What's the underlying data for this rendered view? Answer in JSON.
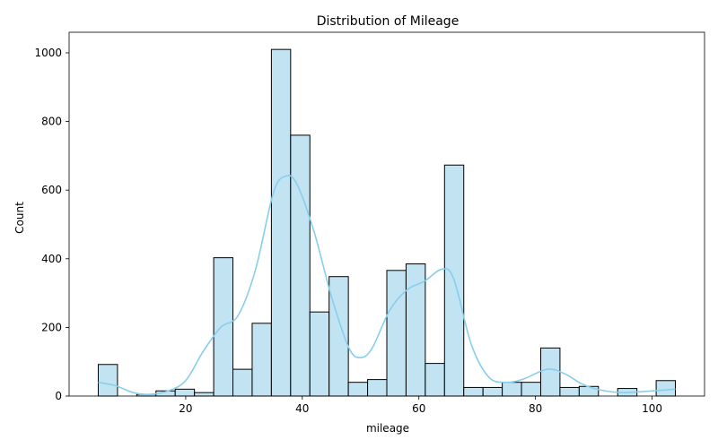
{
  "chart_data": {
    "type": "histogram",
    "title": "Distribution of Mileage",
    "xlabel": "mileage",
    "ylabel": "Count",
    "xlim": [
      0,
      109
    ],
    "ylim": [
      0,
      1060
    ],
    "xticks": [
      20,
      40,
      60,
      80,
      100
    ],
    "yticks": [
      0,
      200,
      400,
      600,
      800,
      1000
    ],
    "bar_color": "#c2e4f2",
    "bar_edge_color": "#000000",
    "kde_color": "#87ceeb",
    "grid": false,
    "bins": [
      {
        "x0": 5.0,
        "x1": 8.3,
        "count": 92
      },
      {
        "x0": 8.3,
        "x1": 11.6,
        "count": 0
      },
      {
        "x0": 11.6,
        "x1": 14.9,
        "count": 5
      },
      {
        "x0": 14.9,
        "x1": 18.2,
        "count": 15
      },
      {
        "x0": 18.2,
        "x1": 21.5,
        "count": 20
      },
      {
        "x0": 21.5,
        "x1": 24.8,
        "count": 10
      },
      {
        "x0": 24.8,
        "x1": 28.1,
        "count": 403
      },
      {
        "x0": 28.1,
        "x1": 31.4,
        "count": 78
      },
      {
        "x0": 31.4,
        "x1": 34.7,
        "count": 212
      },
      {
        "x0": 34.7,
        "x1": 38.0,
        "count": 1010
      },
      {
        "x0": 38.0,
        "x1": 41.3,
        "count": 760
      },
      {
        "x0": 41.3,
        "x1": 44.6,
        "count": 245
      },
      {
        "x0": 44.6,
        "x1": 47.9,
        "count": 348
      },
      {
        "x0": 47.9,
        "x1": 51.2,
        "count": 40
      },
      {
        "x0": 51.2,
        "x1": 54.5,
        "count": 48
      },
      {
        "x0": 54.5,
        "x1": 57.8,
        "count": 366
      },
      {
        "x0": 57.8,
        "x1": 61.1,
        "count": 385
      },
      {
        "x0": 61.1,
        "x1": 64.4,
        "count": 95
      },
      {
        "x0": 64.4,
        "x1": 67.7,
        "count": 673
      },
      {
        "x0": 67.7,
        "x1": 71.0,
        "count": 25
      },
      {
        "x0": 71.0,
        "x1": 74.3,
        "count": 25
      },
      {
        "x0": 74.3,
        "x1": 77.6,
        "count": 40
      },
      {
        "x0": 77.6,
        "x1": 80.9,
        "count": 40
      },
      {
        "x0": 80.9,
        "x1": 84.2,
        "count": 140
      },
      {
        "x0": 84.2,
        "x1": 87.5,
        "count": 25
      },
      {
        "x0": 87.5,
        "x1": 90.8,
        "count": 28
      },
      {
        "x0": 90.8,
        "x1": 94.1,
        "count": 0
      },
      {
        "x0": 94.1,
        "x1": 97.4,
        "count": 22
      },
      {
        "x0": 97.4,
        "x1": 100.7,
        "count": 0
      },
      {
        "x0": 100.7,
        "x1": 104.0,
        "count": 45
      }
    ],
    "kde": {
      "x": [
        5,
        8,
        11,
        14,
        17,
        20,
        23,
        26,
        29,
        32,
        35,
        37,
        39,
        42,
        45,
        48,
        50,
        52,
        55,
        58,
        61,
        64,
        66,
        69,
        72,
        75,
        78,
        82,
        85,
        88,
        91,
        95,
        100,
        104
      ],
      "y": [
        40,
        30,
        10,
        5,
        15,
        45,
        130,
        200,
        235,
        370,
        590,
        640,
        620,
        480,
        290,
        140,
        112,
        140,
        250,
        310,
        335,
        370,
        340,
        150,
        55,
        40,
        50,
        78,
        65,
        35,
        18,
        10,
        15,
        20
      ]
    }
  }
}
